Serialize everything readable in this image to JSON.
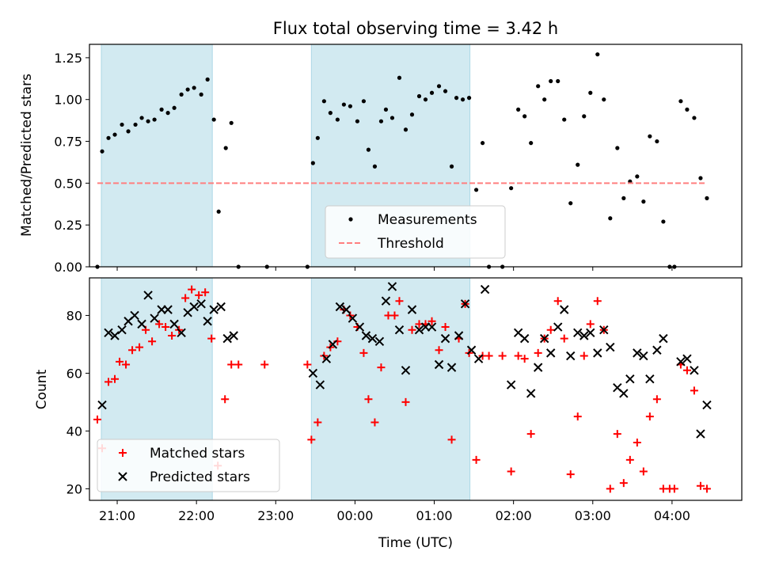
{
  "chart_data": [
    {
      "type": "scatter",
      "title": "Flux total observing time = 3.42 h",
      "xlabel": "",
      "ylabel": "Matched/Predicted stars",
      "ylim": [
        0,
        1.33
      ],
      "yticks": [
        0.0,
        0.25,
        0.5,
        0.75,
        1.0,
        1.25
      ],
      "ytick_labels": [
        "0.00",
        "0.25",
        "0.50",
        "0.75",
        "1.00",
        "1.25"
      ],
      "x_unit": "hours since 20:00 UTC",
      "xlim": [
        0.65,
        8.88
      ],
      "shaded_intervals": [
        [
          0.8,
          2.2
        ],
        [
          3.45,
          5.45
        ]
      ],
      "shade_color": "#add8e6",
      "legend_position": "lower-center",
      "legend": [
        "Measurements",
        "Threshold"
      ],
      "series": [
        {
          "name": "Measurements",
          "marker": "dot",
          "color": "#000000",
          "points": [
            [
              0.75,
              0.0
            ],
            [
              0.81,
              0.69
            ],
            [
              0.89,
              0.77
            ],
            [
              0.97,
              0.79
            ],
            [
              1.06,
              0.85
            ],
            [
              1.14,
              0.81
            ],
            [
              1.23,
              0.85
            ],
            [
              1.31,
              0.89
            ],
            [
              1.39,
              0.87
            ],
            [
              1.47,
              0.88
            ],
            [
              1.56,
              0.94
            ],
            [
              1.64,
              0.92
            ],
            [
              1.72,
              0.95
            ],
            [
              1.81,
              1.03
            ],
            [
              1.89,
              1.06
            ],
            [
              1.97,
              1.07
            ],
            [
              2.06,
              1.03
            ],
            [
              2.14,
              1.12
            ],
            [
              2.22,
              0.88
            ],
            [
              2.28,
              0.33
            ],
            [
              2.37,
              0.71
            ],
            [
              2.44,
              0.86
            ],
            [
              2.53,
              0.0
            ],
            [
              2.89,
              0.0
            ],
            [
              3.4,
              0.0
            ],
            [
              3.47,
              0.62
            ],
            [
              3.53,
              0.77
            ],
            [
              3.61,
              0.99
            ],
            [
              3.69,
              0.92
            ],
            [
              3.78,
              0.88
            ],
            [
              3.86,
              0.97
            ],
            [
              3.94,
              0.96
            ],
            [
              4.03,
              0.87
            ],
            [
              4.11,
              0.99
            ],
            [
              4.17,
              0.7
            ],
            [
              4.25,
              0.6
            ],
            [
              4.33,
              0.87
            ],
            [
              4.39,
              0.94
            ],
            [
              4.47,
              0.89
            ],
            [
              4.56,
              1.13
            ],
            [
              4.64,
              0.82
            ],
            [
              4.72,
              0.91
            ],
            [
              4.81,
              1.02
            ],
            [
              4.89,
              1.0
            ],
            [
              4.97,
              1.04
            ],
            [
              5.06,
              1.08
            ],
            [
              5.14,
              1.05
            ],
            [
              5.22,
              0.6
            ],
            [
              5.28,
              1.01
            ],
            [
              5.36,
              1.0
            ],
            [
              5.44,
              1.01
            ],
            [
              5.53,
              0.46
            ],
            [
              5.61,
              0.74
            ],
            [
              5.69,
              0.0
            ],
            [
              5.86,
              0.0
            ],
            [
              5.97,
              0.47
            ],
            [
              6.06,
              0.94
            ],
            [
              6.14,
              0.9
            ],
            [
              6.22,
              0.74
            ],
            [
              6.31,
              1.08
            ],
            [
              6.39,
              1.0
            ],
            [
              6.47,
              1.11
            ],
            [
              6.56,
              1.11
            ],
            [
              6.64,
              0.88
            ],
            [
              6.72,
              0.38
            ],
            [
              6.81,
              0.61
            ],
            [
              6.89,
              0.9
            ],
            [
              6.97,
              1.04
            ],
            [
              7.06,
              1.27
            ],
            [
              7.14,
              1.0
            ],
            [
              7.22,
              0.29
            ],
            [
              7.31,
              0.71
            ],
            [
              7.39,
              0.41
            ],
            [
              7.47,
              0.51
            ],
            [
              7.56,
              0.54
            ],
            [
              7.64,
              0.39
            ],
            [
              7.72,
              0.78
            ],
            [
              7.81,
              0.75
            ],
            [
              7.89,
              0.27
            ],
            [
              7.97,
              0.0
            ],
            [
              8.03,
              0.0
            ],
            [
              8.11,
              0.99
            ],
            [
              8.19,
              0.94
            ],
            [
              8.28,
              0.89
            ],
            [
              8.36,
              0.53
            ],
            [
              8.44,
              0.41
            ]
          ]
        },
        {
          "name": "Threshold",
          "marker": "dashed-line",
          "color": "#ff7f7f",
          "points": [
            [
              0.75,
              0.5
            ],
            [
              8.44,
              0.5
            ]
          ]
        }
      ]
    },
    {
      "type": "scatter",
      "title": "",
      "xlabel": "Time (UTC)",
      "ylabel": "Count",
      "ylim": [
        16,
        93
      ],
      "yticks": [
        20,
        40,
        60,
        80
      ],
      "x_unit": "hours since 20:00 UTC",
      "xlim": [
        0.65,
        8.88
      ],
      "xticks": [
        1,
        2,
        3,
        4,
        5,
        6,
        7,
        8
      ],
      "xtick_labels": [
        "21:00",
        "22:00",
        "23:00",
        "00:00",
        "01:00",
        "02:00",
        "03:00",
        "04:00"
      ],
      "shaded_intervals": [
        [
          0.8,
          2.2
        ],
        [
          3.45,
          5.45
        ]
      ],
      "shade_color": "#add8e6",
      "legend_position": "lower-left",
      "legend": [
        "Matched stars",
        "Predicted stars"
      ],
      "series": [
        {
          "name": "Matched stars",
          "marker": "plus",
          "color": "#ff0000",
          "points": [
            [
              0.75,
              44
            ],
            [
              0.81,
              34
            ],
            [
              0.89,
              57
            ],
            [
              0.97,
              58
            ],
            [
              1.03,
              64
            ],
            [
              1.11,
              63
            ],
            [
              1.19,
              68
            ],
            [
              1.28,
              69
            ],
            [
              1.36,
              75
            ],
            [
              1.44,
              71
            ],
            [
              1.53,
              77
            ],
            [
              1.61,
              76
            ],
            [
              1.69,
              73
            ],
            [
              1.78,
              75
            ],
            [
              1.86,
              86
            ],
            [
              1.94,
              89
            ],
            [
              2.03,
              87
            ],
            [
              2.11,
              88
            ],
            [
              2.19,
              72
            ],
            [
              2.27,
              28
            ],
            [
              2.36,
              51
            ],
            [
              2.44,
              63
            ],
            [
              2.53,
              63
            ],
            [
              2.86,
              63
            ],
            [
              3.4,
              63
            ],
            [
              3.45,
              37
            ],
            [
              3.53,
              43
            ],
            [
              3.61,
              66
            ],
            [
              3.69,
              69
            ],
            [
              3.78,
              71
            ],
            [
              3.86,
              82
            ],
            [
              3.94,
              80
            ],
            [
              4.03,
              76
            ],
            [
              4.11,
              67
            ],
            [
              4.17,
              51
            ],
            [
              4.25,
              43
            ],
            [
              4.33,
              62
            ],
            [
              4.42,
              80
            ],
            [
              4.5,
              80
            ],
            [
              4.56,
              85
            ],
            [
              4.64,
              50
            ],
            [
              4.72,
              75
            ],
            [
              4.81,
              77
            ],
            [
              4.89,
              77
            ],
            [
              4.97,
              78
            ],
            [
              5.06,
              68
            ],
            [
              5.14,
              76
            ],
            [
              5.22,
              37
            ],
            [
              5.31,
              72
            ],
            [
              5.39,
              84
            ],
            [
              5.44,
              67
            ],
            [
              5.53,
              30
            ],
            [
              5.61,
              66
            ],
            [
              5.69,
              66
            ],
            [
              5.86,
              66
            ],
            [
              5.97,
              26
            ],
            [
              6.06,
              66
            ],
            [
              6.14,
              65
            ],
            [
              6.22,
              39
            ],
            [
              6.31,
              67
            ],
            [
              6.39,
              72
            ],
            [
              6.47,
              75
            ],
            [
              6.56,
              85
            ],
            [
              6.64,
              72
            ],
            [
              6.72,
              25
            ],
            [
              6.81,
              45
            ],
            [
              6.89,
              66
            ],
            [
              6.97,
              77
            ],
            [
              7.06,
              85
            ],
            [
              7.14,
              75
            ],
            [
              7.22,
              20
            ],
            [
              7.31,
              39
            ],
            [
              7.39,
              22
            ],
            [
              7.47,
              30
            ],
            [
              7.56,
              36
            ],
            [
              7.64,
              26
            ],
            [
              7.72,
              45
            ],
            [
              7.81,
              51
            ],
            [
              7.89,
              20
            ],
            [
              7.97,
              20
            ],
            [
              8.03,
              20
            ],
            [
              8.11,
              63
            ],
            [
              8.19,
              61
            ],
            [
              8.28,
              54
            ],
            [
              8.36,
              21
            ],
            [
              8.44,
              20
            ]
          ]
        },
        {
          "name": "Predicted stars",
          "marker": "x",
          "color": "#000000",
          "points": [
            [
              0.81,
              49
            ],
            [
              0.89,
              74
            ],
            [
              0.97,
              73
            ],
            [
              1.06,
              75
            ],
            [
              1.14,
              78
            ],
            [
              1.22,
              80
            ],
            [
              1.31,
              77
            ],
            [
              1.39,
              87
            ],
            [
              1.47,
              79
            ],
            [
              1.56,
              82
            ],
            [
              1.64,
              82
            ],
            [
              1.72,
              77
            ],
            [
              1.81,
              74
            ],
            [
              1.89,
              81
            ],
            [
              1.97,
              83
            ],
            [
              2.06,
              84
            ],
            [
              2.14,
              78
            ],
            [
              2.22,
              82
            ],
            [
              2.31,
              83
            ],
            [
              2.39,
              72
            ],
            [
              2.47,
              73
            ],
            [
              3.47,
              60
            ],
            [
              3.56,
              56
            ],
            [
              3.64,
              65
            ],
            [
              3.72,
              70
            ],
            [
              3.81,
              83
            ],
            [
              3.89,
              82
            ],
            [
              3.97,
              79
            ],
            [
              4.06,
              76
            ],
            [
              4.14,
              73
            ],
            [
              4.22,
              72
            ],
            [
              4.31,
              71
            ],
            [
              4.39,
              85
            ],
            [
              4.47,
              90
            ],
            [
              4.56,
              75
            ],
            [
              4.64,
              61
            ],
            [
              4.72,
              82
            ],
            [
              4.81,
              75
            ],
            [
              4.89,
              76
            ],
            [
              4.97,
              76
            ],
            [
              5.06,
              63
            ],
            [
              5.14,
              72
            ],
            [
              5.22,
              62
            ],
            [
              5.31,
              73
            ],
            [
              5.39,
              84
            ],
            [
              5.47,
              68
            ],
            [
              5.56,
              65
            ],
            [
              5.64,
              89
            ],
            [
              5.97,
              56
            ],
            [
              6.06,
              74
            ],
            [
              6.14,
              72
            ],
            [
              6.22,
              53
            ],
            [
              6.31,
              62
            ],
            [
              6.39,
              72
            ],
            [
              6.47,
              67
            ],
            [
              6.56,
              76
            ],
            [
              6.64,
              82
            ],
            [
              6.72,
              66
            ],
            [
              6.81,
              74
            ],
            [
              6.89,
              73
            ],
            [
              6.97,
              74
            ],
            [
              7.06,
              67
            ],
            [
              7.14,
              75
            ],
            [
              7.22,
              69
            ],
            [
              7.31,
              55
            ],
            [
              7.39,
              53
            ],
            [
              7.47,
              58
            ],
            [
              7.56,
              67
            ],
            [
              7.64,
              66
            ],
            [
              7.72,
              58
            ],
            [
              7.81,
              68
            ],
            [
              7.89,
              72
            ],
            [
              8.11,
              64
            ],
            [
              8.19,
              65
            ],
            [
              8.28,
              61
            ],
            [
              8.36,
              39
            ],
            [
              8.44,
              49
            ]
          ]
        }
      ]
    }
  ]
}
